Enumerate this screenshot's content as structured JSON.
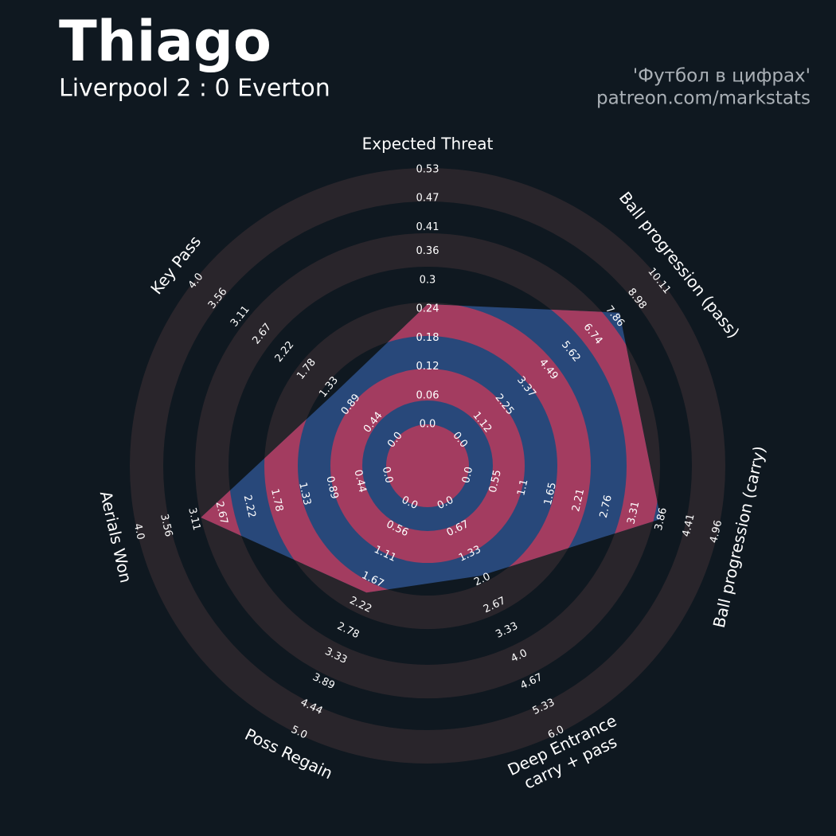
{
  "chart_data": {
    "type": "radar",
    "title": "Thiago",
    "subtitle": "Liverpool 2 : 0 Everton",
    "credits": [
      "'Футбол в цифрах'",
      "patreon.com/markstats"
    ],
    "colors": {
      "background": "#0f1820",
      "ring": "#29252b",
      "polygon": "#28487a",
      "highlight": "#a33c60"
    },
    "axes": [
      {
        "label": [
          "Expected Threat"
        ],
        "ticks": [
          {
            "value": 0,
            "label": "0.0"
          },
          0.06,
          0.12,
          0.18,
          0.24,
          0.3,
          0.36,
          0.41,
          0.47,
          0.53
        ]
      },
      {
        "label": [
          "Ball progression (pass)"
        ],
        "ticks": [
          {
            "value": 0,
            "label": "0.0"
          },
          1.12,
          2.25,
          3.37,
          4.49,
          5.62,
          6.74,
          7.86,
          8.98,
          10.11
        ]
      },
      {
        "label": [
          "Ball progression (carry)"
        ],
        "ticks": [
          {
            "value": 0,
            "label": "0.0"
          },
          0.55,
          1.1,
          1.65,
          2.21,
          2.76,
          3.31,
          3.86,
          4.41,
          4.96
        ]
      },
      {
        "label": [
          "Deep Entrance",
          "carry + pass"
        ],
        "ticks": [
          {
            "value": 0,
            "label": "0.0"
          },
          0.67,
          1.33,
          {
            "value": 2,
            "label": "2.0"
          },
          2.67,
          3.33,
          {
            "value": 4,
            "label": "4.0"
          },
          4.67,
          5.33,
          {
            "value": 6,
            "label": "6.0"
          }
        ]
      },
      {
        "label": [
          "Poss Regain"
        ],
        "ticks": [
          {
            "value": 0,
            "label": "0.0"
          },
          0.56,
          1.11,
          1.67,
          2.22,
          2.78,
          3.33,
          3.89,
          4.44,
          {
            "value": 5,
            "label": "5.0"
          }
        ]
      },
      {
        "label": [
          "Aerials Won"
        ],
        "ticks": [
          {
            "value": 0,
            "label": "0.0"
          },
          0.44,
          0.89,
          1.33,
          1.78,
          2.22,
          2.67,
          3.11,
          3.56,
          {
            "value": 4,
            "label": "4.0"
          }
        ]
      },
      {
        "label": [
          "Key Pass"
        ],
        "ticks": [
          {
            "value": 0,
            "label": "0.0"
          },
          0.44,
          0.89,
          1.33,
          1.78,
          2.22,
          2.67,
          3.11,
          3.56,
          {
            "value": 4,
            "label": "4.0"
          }
        ]
      }
    ],
    "values": [
      0.25,
      8.1,
      3.85,
      1.9,
      1.95,
      3.0,
      1.2
    ]
  }
}
